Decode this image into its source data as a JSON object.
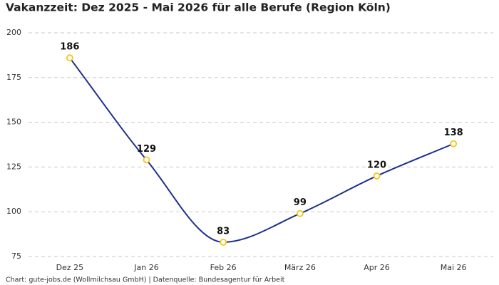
{
  "chart_data": {
    "type": "line",
    "title": "Vakanzzeit: Dez 2025 - Mai 2026 für alle Berufe (Region Köln)",
    "categories": [
      "Dez 25",
      "Jan 26",
      "Feb 26",
      "März 26",
      "Apr 26",
      "Mai 26"
    ],
    "series": [
      {
        "name": "Vakanzzeit",
        "color": "#1f2f8a",
        "values": [
          186,
          129,
          83,
          99,
          120,
          138
        ]
      }
    ],
    "marker_color": "#f5c518",
    "ylim": [
      75,
      200
    ],
    "yticks": [
      75,
      100,
      125,
      150,
      175,
      200
    ],
    "grid": true,
    "source": "Chart: gute-jobs.de (Wollmilchsau GmbH) | Datenquelle: Bundesagentur für Arbeit"
  }
}
